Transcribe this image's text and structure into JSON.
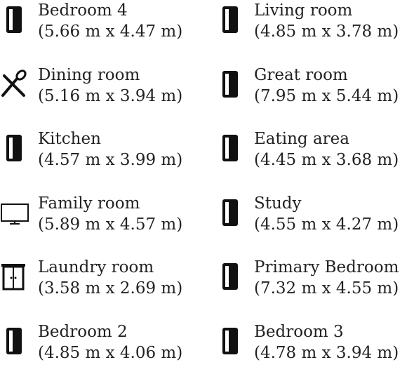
{
  "rooms": [
    {
      "name": "Bedroom 4",
      "size": "(5.66 m x 4.47 m)"
    },
    {
      "name": "Living room",
      "size": "(4.85 m x 3.78 m)"
    },
    {
      "name": "Dining room",
      "size": "(5.16 m x 3.94 m)"
    },
    {
      "name": "Great room",
      "size": "(7.95 m x 5.44 m)"
    },
    {
      "name": "Kitchen",
      "size": "(4.57 m x 3.99 m)"
    },
    {
      "name": "Eating area",
      "size": "(4.45 m x 3.68 m)"
    },
    {
      "name": "Family room",
      "size": "(5.89 m x 4.57 m)"
    },
    {
      "name": "Study",
      "size": "(4.55 m x 4.27 m)"
    },
    {
      "name": "Laundry room",
      "size": "(3.58 m x 2.69 m)"
    },
    {
      "name": "Primary Bedroom",
      "size": "(7.32 m x 4.55 m)"
    },
    {
      "name": "Bedroom 2",
      "size": "(4.85 m x 4.06 m)"
    },
    {
      "name": "Bedroom 3",
      "size": "(4.78 m x 3.94 m)"
    }
  ]
}
